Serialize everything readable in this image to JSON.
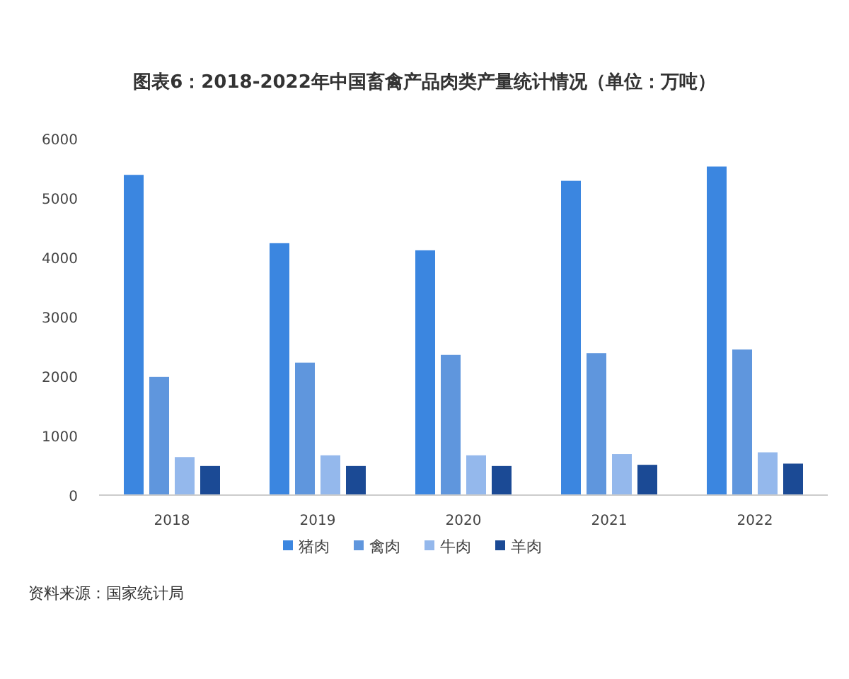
{
  "chart_data": {
    "type": "bar",
    "title": "图表6：2018-2022年中国畜禽产品肉类产量统计情况（单位：万吨）",
    "categories": [
      "2018",
      "2019",
      "2020",
      "2021",
      "2022"
    ],
    "series": [
      {
        "name": "猪肉",
        "color": "#3b86e0",
        "values": [
          5390,
          4240,
          4120,
          5290,
          5530
        ]
      },
      {
        "name": "禽肉",
        "color": "#5f96dd",
        "values": [
          1990,
          2230,
          2360,
          2390,
          2450
        ]
      },
      {
        "name": "牛肉",
        "color": "#94b8ec",
        "values": [
          640,
          670,
          670,
          690,
          720
        ]
      },
      {
        "name": "羊肉",
        "color": "#1b4a95",
        "values": [
          490,
          490,
          490,
          510,
          530
        ]
      }
    ],
    "ylim": [
      0,
      6000
    ],
    "yticks": [
      0,
      1000,
      2000,
      3000,
      4000,
      5000,
      6000
    ],
    "grid": false,
    "legend": "bottom",
    "annotations": [
      "资料来源：国家统计局"
    ]
  }
}
